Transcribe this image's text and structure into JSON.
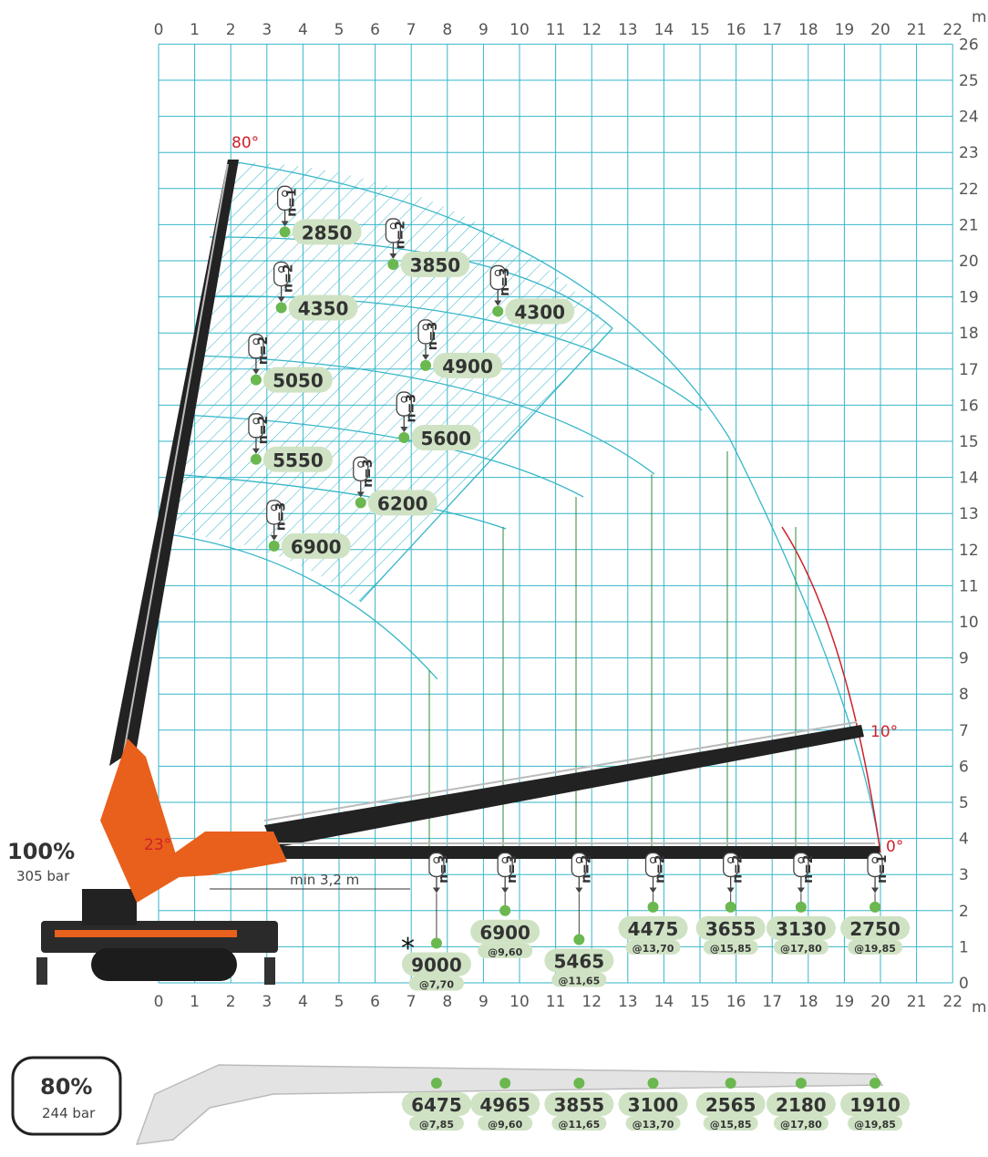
{
  "axis": {
    "unit": "m",
    "x_ticks": [
      "0",
      "1",
      "2",
      "3",
      "4",
      "5",
      "6",
      "7",
      "8",
      "9",
      "10",
      "11",
      "12",
      "13",
      "14",
      "15",
      "16",
      "17",
      "18",
      "19",
      "20",
      "21",
      "22"
    ],
    "y_ticks": [
      "0",
      "1",
      "2",
      "3",
      "4",
      "5",
      "6",
      "7",
      "8",
      "9",
      "10",
      "11",
      "12",
      "13",
      "14",
      "15",
      "16",
      "17",
      "18",
      "19",
      "20",
      "21",
      "22",
      "23",
      "24",
      "25",
      "26"
    ],
    "xlim": [
      0,
      22
    ],
    "ylim": [
      0,
      26
    ]
  },
  "angles": {
    "a80": "80°",
    "a23": "23°",
    "a10": "10°",
    "a0": "0°"
  },
  "min_distance_label": "min 3,2 m",
  "asterisk": "*",
  "pressure_100": {
    "percent": "100%",
    "bar": "305 bar"
  },
  "pressure_80": {
    "percent": "80%",
    "bar": "244 bar"
  },
  "colors": {
    "grid": "#36b6c8",
    "capacity_badge": "#cfe3c4",
    "point": "#6ab84f",
    "boom_orange": "#e8601c",
    "boom_black": "#222222",
    "arc_red": "#d0202a"
  },
  "chart_data": {
    "type": "scatter",
    "title": "",
    "xlabel": "m",
    "ylabel": "m",
    "upper_points": [
      {
        "x": 3.5,
        "y": 20.8,
        "load": "2850",
        "reeving": "n=1"
      },
      {
        "x": 6.5,
        "y": 19.9,
        "load": "3850",
        "reeving": "n=2"
      },
      {
        "x": 3.4,
        "y": 18.7,
        "load": "4350",
        "reeving": "n=2"
      },
      {
        "x": 9.4,
        "y": 18.6,
        "load": "4300",
        "reeving": "n=3"
      },
      {
        "x": 2.7,
        "y": 16.7,
        "load": "5050",
        "reeving": "n=2"
      },
      {
        "x": 7.4,
        "y": 17.1,
        "load": "4900",
        "reeving": "n=3"
      },
      {
        "x": 6.8,
        "y": 15.1,
        "load": "5600",
        "reeving": "n=3"
      },
      {
        "x": 2.7,
        "y": 14.5,
        "load": "5550",
        "reeving": "n=2"
      },
      {
        "x": 5.6,
        "y": 13.3,
        "load": "6200",
        "reeving": "n=3"
      },
      {
        "x": 3.2,
        "y": 12.1,
        "load": "6900",
        "reeving": "n=3"
      }
    ],
    "horizontal_points": [
      {
        "x": 7.7,
        "y": 1.1,
        "load": "9000",
        "radius": "@7,70",
        "reeving": "n=3"
      },
      {
        "x": 9.6,
        "y": 2.0,
        "load": "6900",
        "radius": "@9,60",
        "reeving": "n=3"
      },
      {
        "x": 11.65,
        "y": 1.2,
        "load": "5465",
        "radius": "@11,65",
        "reeving": "n=2"
      },
      {
        "x": 13.7,
        "y": 2.1,
        "load": "4475",
        "radius": "@13,70",
        "reeving": "n=2"
      },
      {
        "x": 15.85,
        "y": 2.1,
        "load": "3655",
        "radius": "@15,85",
        "reeving": "n=2"
      },
      {
        "x": 17.8,
        "y": 2.1,
        "load": "3130",
        "radius": "@17,80",
        "reeving": "n=2"
      },
      {
        "x": 19.85,
        "y": 2.1,
        "load": "2750",
        "radius": "@19,85",
        "reeving": "n=1"
      }
    ],
    "reduced_80": [
      {
        "load": "6475",
        "radius": "@7,85"
      },
      {
        "load": "4965",
        "radius": "@9,60"
      },
      {
        "load": "3855",
        "radius": "@11,65"
      },
      {
        "load": "3100",
        "radius": "@13,70"
      },
      {
        "load": "2565",
        "radius": "@15,85"
      },
      {
        "load": "2180",
        "radius": "@17,80"
      },
      {
        "load": "1910",
        "radius": "@19,85"
      }
    ]
  }
}
